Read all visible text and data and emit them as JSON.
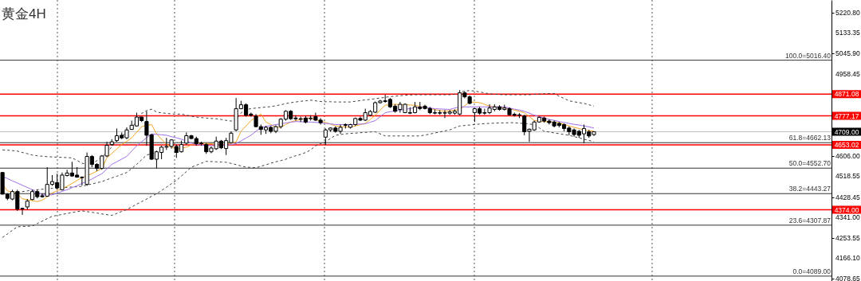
{
  "chart_data": {
    "type": "candlestick",
    "title": "黄金4H",
    "color": "#000000",
    "tick_labels": "y",
    "categories": [
      null,
      null,
      null,
      null,
      null,
      null,
      null,
      null,
      null,
      null,
      null,
      null,
      null,
      null,
      null,
      null,
      null,
      null,
      null,
      null,
      null,
      null,
      null,
      null,
      null,
      null,
      null,
      null,
      null,
      null,
      null,
      null,
      null,
      null,
      null,
      null,
      null,
      null,
      null,
      null,
      null,
      null,
      null,
      null,
      null,
      null,
      null,
      null,
      null,
      null,
      null,
      null,
      null,
      null,
      null,
      null,
      null,
      null,
      null,
      null,
      null,
      null,
      null,
      null,
      null,
      null,
      null,
      null,
      null,
      null,
      null,
      null,
      null,
      null,
      null,
      null,
      null,
      null,
      null,
      null,
      null,
      null,
      null,
      null,
      null,
      null,
      null,
      null,
      null,
      null,
      null,
      null,
      null,
      null,
      null,
      null,
      null,
      null,
      null,
      null,
      null,
      null,
      null,
      null,
      null,
      null,
      null,
      null,
      null,
      null,
      null,
      null,
      null,
      null,
      null,
      null,
      null,
      null,
      null,
      null
    ],
    "ohlc": [
      [
        4534,
        4536,
        4440,
        4441
      ],
      [
        4441,
        4445,
        4415,
        4423
      ],
      [
        4420,
        4460,
        4415,
        4452
      ],
      [
        4452,
        4460,
        4369,
        4377
      ],
      [
        4380,
        4383,
        4352,
        4378
      ],
      [
        4386,
        4420,
        4375,
        4411
      ],
      [
        4418,
        4460,
        4415,
        4452
      ],
      [
        4452,
        4460,
        4423,
        4430
      ],
      [
        4434,
        4443,
        4426,
        4430
      ],
      [
        4432,
        4557,
        4430,
        4483
      ],
      [
        4483,
        4523,
        4477,
        4495
      ],
      [
        4491,
        4529,
        4460,
        4468
      ],
      [
        4460,
        4534,
        4457,
        4523
      ],
      [
        4521,
        4546,
        4517,
        4532
      ],
      [
        4532,
        4580,
        4516,
        4519
      ],
      [
        4523,
        4557,
        4512,
        4514
      ],
      [
        4514,
        4517,
        4478,
        4512
      ],
      [
        4483,
        4620,
        4477,
        4603
      ],
      [
        4603,
        4609,
        4557,
        4569
      ],
      [
        4569,
        4574,
        4540,
        4552
      ],
      [
        4552,
        4609,
        4546,
        4605
      ],
      [
        4605,
        4666,
        4600,
        4651
      ],
      [
        4654,
        4677,
        4649,
        4666
      ],
      [
        4671,
        4723,
        4666,
        4692
      ],
      [
        4694,
        4706,
        4677,
        4683
      ],
      [
        4683,
        4728,
        4677,
        4717
      ],
      [
        4719,
        4757,
        4717,
        4737
      ],
      [
        4734,
        4791,
        4731,
        4772
      ],
      [
        4772,
        4774,
        4751,
        4757
      ],
      [
        4753,
        4797,
        4649,
        4694
      ],
      [
        4696,
        4700,
        4589,
        4591
      ],
      [
        4591,
        4628,
        4552,
        4623
      ],
      [
        4620,
        4649,
        4591,
        4643
      ],
      [
        4643,
        4683,
        4631,
        4646
      ],
      [
        4646,
        4677,
        4637,
        4674
      ],
      [
        4646,
        4654,
        4597,
        4620
      ],
      [
        4623,
        4671,
        4620,
        4654
      ],
      [
        4660,
        4706,
        4654,
        4692
      ],
      [
        4692,
        4696,
        4677,
        4680
      ],
      [
        4680,
        4688,
        4649,
        4658
      ],
      [
        4660,
        4666,
        4649,
        4658
      ],
      [
        4654,
        4660,
        4614,
        4623
      ],
      [
        4623,
        4646,
        4617,
        4639
      ],
      [
        4636,
        4688,
        4631,
        4669
      ],
      [
        4669,
        4674,
        4635,
        4640
      ],
      [
        4637,
        4683,
        4609,
        4671
      ],
      [
        4662,
        4711,
        4658,
        4703
      ],
      [
        4717,
        4854,
        4711,
        4808
      ],
      [
        4808,
        4842,
        4806,
        4825
      ],
      [
        4825,
        4831,
        4774,
        4780
      ],
      [
        4785,
        4791,
        4774,
        4780
      ],
      [
        4776,
        4785,
        4728,
        4731
      ],
      [
        4731,
        4740,
        4696,
        4719
      ],
      [
        4717,
        4734,
        4700,
        4728
      ],
      [
        4728,
        4734,
        4703,
        4711
      ],
      [
        4711,
        4737,
        4703,
        4731
      ],
      [
        4731,
        4768,
        4723,
        4763
      ],
      [
        4763,
        4802,
        4757,
        4797
      ],
      [
        4797,
        4802,
        4760,
        4765
      ],
      [
        4768,
        4780,
        4757,
        4765
      ],
      [
        4765,
        4774,
        4751,
        4763
      ],
      [
        4768,
        4777,
        4745,
        4751
      ],
      [
        4765,
        4780,
        4757,
        4768
      ],
      [
        4774,
        4791,
        4755,
        4759
      ],
      [
        4759,
        4768,
        4740,
        4748
      ],
      [
        4686,
        4723,
        4652,
        4717
      ],
      [
        4717,
        4728,
        4709,
        4725
      ],
      [
        4725,
        4732,
        4705,
        4711
      ],
      [
        4711,
        4740,
        4700,
        4728
      ],
      [
        4740,
        4745,
        4723,
        4737
      ],
      [
        4728,
        4743,
        4723,
        4740
      ],
      [
        4740,
        4770,
        4734,
        4766
      ],
      [
        4766,
        4774,
        4755,
        4759
      ],
      [
        4759,
        4808,
        4755,
        4791
      ],
      [
        4780,
        4802,
        4777,
        4796
      ],
      [
        4793,
        4839,
        4789,
        4834
      ],
      [
        4834,
        4846,
        4830,
        4841
      ],
      [
        4842,
        4868,
        4834,
        4839
      ],
      [
        4848,
        4854,
        4811,
        4816
      ],
      [
        4819,
        4827,
        4791,
        4797
      ],
      [
        4805,
        4837,
        4791,
        4827
      ],
      [
        4791,
        4831,
        4789,
        4827
      ],
      [
        4791,
        4814,
        4785,
        4789
      ],
      [
        4791,
        4837,
        4788,
        4816
      ],
      [
        4814,
        4837,
        4802,
        4809
      ],
      [
        4819,
        4825,
        4805,
        4809
      ],
      [
        4809,
        4816,
        4785,
        4791
      ],
      [
        4791,
        4805,
        4784,
        4789
      ],
      [
        4791,
        4802,
        4782,
        4789
      ],
      [
        4789,
        4802,
        4768,
        4791
      ],
      [
        4789,
        4802,
        4782,
        4794
      ],
      [
        4789,
        4805,
        4782,
        4797
      ],
      [
        4785,
        4888,
        4780,
        4876
      ],
      [
        4876,
        4882,
        4853,
        4859
      ],
      [
        4859,
        4865,
        4827,
        4831
      ],
      [
        4791,
        4811,
        4751,
        4808
      ],
      [
        4808,
        4816,
        4782,
        4789
      ],
      [
        4791,
        4808,
        4782,
        4789
      ],
      [
        4791,
        4827,
        4785,
        4811
      ],
      [
        4805,
        4827,
        4797,
        4816
      ],
      [
        4816,
        4823,
        4800,
        4805
      ],
      [
        4805,
        4825,
        4800,
        4811
      ],
      [
        4808,
        4814,
        4780,
        4782
      ],
      [
        4784,
        4791,
        4774,
        4780
      ],
      [
        4782,
        4789,
        4768,
        4780
      ],
      [
        4777,
        4782,
        4694,
        4709
      ],
      [
        4711,
        4723,
        4666,
        4720
      ],
      [
        4717,
        4757,
        4713,
        4751
      ],
      [
        4751,
        4774,
        4748,
        4771
      ],
      [
        4768,
        4774,
        4748,
        4755
      ],
      [
        4755,
        4762,
        4740,
        4748
      ],
      [
        4751,
        4757,
        4728,
        4734
      ],
      [
        4745,
        4751,
        4728,
        4736
      ],
      [
        4740,
        4745,
        4711,
        4723
      ],
      [
        4725,
        4732,
        4694,
        4709
      ],
      [
        4717,
        4723,
        4688,
        4697
      ],
      [
        4711,
        4717,
        4683,
        4694
      ],
      [
        4700,
        4740,
        4660,
        4723
      ],
      [
        4709,
        4717,
        4683,
        4691
      ],
      [
        4697,
        4711,
        4691,
        4709
      ]
    ],
    "series": [
      {
        "type": "line",
        "color": "#404040",
        "line_style": "dashed",
        "values": [
          4631,
          4630,
          4628,
          4626,
          4620,
          4615,
          4609,
          4606,
          4604,
          4602,
          4601,
          4600,
          4599,
          4598,
          4597,
          4586,
          4574,
          4569,
          4572,
          4585,
          4600,
          4620,
          4645,
          4671,
          4690,
          4706,
          4730,
          4751,
          4788,
          4800,
          4806,
          4794,
          4790,
          4788,
          4786,
          4785,
          4785,
          4780,
          4776,
          4772,
          4770,
          4768,
          4766,
          4765,
          4762,
          4758,
          4755,
          4760,
          4790,
          4805,
          4808,
          4811,
          4813,
          4815,
          4817,
          4821,
          4825,
          4830,
          4834,
          4837,
          4840,
          4842,
          4845,
          4842,
          4839,
          4838,
          4838,
          4837,
          4837,
          4837,
          4837,
          4840,
          4843,
          4846,
          4848,
          4851,
          4854,
          4857,
          4860,
          4862,
          4864,
          4866,
          4867,
          4868,
          4868,
          4868,
          4868,
          4868,
          4868,
          4868,
          4868,
          4870,
          4878,
          4884,
          4886,
          4884,
          4880,
          4876,
          4872,
          4870,
          4869,
          4868,
          4868,
          4868,
          4868,
          4868,
          4868,
          4870,
          4871,
          4872,
          4873,
          4873,
          4862,
          4852,
          4842,
          4838,
          4834,
          4831,
          4825,
          4819
        ]
      },
      {
        "type": "line",
        "color": "#404040",
        "line_style": "dashed",
        "values": [
          4255,
          4270,
          4286,
          4301,
          4302,
          4303,
          4304,
          4315,
          4325,
          4336,
          4346,
          4350,
          4354,
          4358,
          4362,
          4366,
          4369,
          4366,
          4363,
          4360,
          4356,
          4353,
          4350,
          4358,
          4367,
          4375,
          4386,
          4398,
          4409,
          4420,
          4432,
          4443,
          4457,
          4471,
          4486,
          4500,
          4519,
          4538,
          4557,
          4565,
          4574,
          4582,
          4581,
          4580,
          4579,
          4578,
          4573,
          4568,
          4562,
          4557,
          4556,
          4554,
          4561,
          4567,
          4574,
          4580,
          4585,
          4591,
          4599,
          4606,
          4612,
          4620,
          4631,
          4649,
          4658,
          4666,
          4680,
          4694,
          4697,
          4700,
          4702,
          4703,
          4705,
          4706,
          4708,
          4709,
          4700,
          4691,
          4691,
          4691,
          4691,
          4691,
          4691,
          4691,
          4691,
          4695,
          4699,
          4704,
          4708,
          4713,
          4717,
          4726,
          4734,
          4736,
          4738,
          4740,
          4742,
          4744,
          4745,
          4746,
          4747,
          4747,
          4748,
          4748,
          4746,
          4744,
          4742,
          4740,
          4726,
          4711,
          4708,
          4704,
          4701,
          4697,
          4694,
          4688,
          4683,
          4677,
          4672,
          4666
        ]
      },
      {
        "type": "line",
        "color": "#404040",
        "line_style": "dashed",
        "values": [
          null,
          null,
          null,
          4449,
          4452,
          4455,
          4458,
          4460,
          4462,
          4464,
          4466,
          4467,
          4469,
          4470,
          4472,
          4473,
          4475,
          4480,
          4485,
          4490,
          4495,
          4503,
          4511,
          4518,
          4526,
          4534,
          4551,
          4569,
          4589,
          4609,
          4615,
          4620,
          null,
          null,
          null,
          null,
          null,
          null,
          null,
          null,
          null,
          null,
          null,
          null,
          null,
          null,
          null,
          null,
          null,
          null,
          null,
          null,
          null,
          null,
          null,
          null,
          null,
          null,
          null,
          null,
          null,
          null,
          null,
          null,
          null,
          null,
          null,
          null,
          null,
          null,
          null,
          null,
          null,
          null,
          null,
          null,
          null,
          null,
          null,
          null,
          null,
          null,
          null,
          null,
          null,
          null,
          null,
          null,
          null,
          null,
          null,
          null,
          null,
          null,
          null,
          null,
          null,
          null,
          null,
          null,
          null,
          null,
          null,
          null,
          null,
          null,
          null,
          null,
          null,
          null,
          null,
          null,
          null,
          null,
          null,
          null,
          null,
          null,
          null,
          null
        ]
      },
      {
        "type": "line",
        "color": "#f5a623",
        "line_style": "solid",
        "values": [
          4483,
          4455,
          4449,
          4443,
          4421,
          4417,
          4413,
          4409,
          4415,
          4430,
          4446,
          4456,
          4465,
          4475,
          4487,
          4500,
          4512,
          4520,
          4529,
          4540,
          4552,
          4597,
          4616,
          4635,
          4654,
          4668,
          4683,
          4707,
          4731,
          4736,
          4740,
          4700,
          4677,
          4654,
          4644,
          4635,
          4639,
          4643,
          4652,
          4660,
          4659,
          4659,
          4658,
          4653,
          4649,
          4655,
          4660,
          4666,
          4711,
          4734,
          4757,
          4771,
          4785,
          4751,
          4740,
          4728,
          4728,
          4740,
          4751,
          4757,
          4762,
          4767,
          4767,
          4760,
          4757,
          4749,
          4742,
          4734,
          4732,
          4730,
          4728,
          4734,
          4740,
          4745,
          4762,
          4780,
          4802,
          4823,
          4825,
          4827,
          4826,
          4825,
          4824,
          4823,
          4818,
          4813,
          4808,
          4804,
          4800,
          4797,
          4800,
          4802,
          4805,
          4821,
          4837,
          4836,
          4834,
          4827,
          4819,
          4816,
          4814,
          4811,
          4808,
          4802,
          4797,
          4791,
          4774,
          4757,
          4755,
          4753,
          4751,
          4750,
          4748,
          4741,
          4734,
          4728,
          4723,
          4717,
          4714,
          4711
        ]
      },
      {
        "type": "line",
        "color": "#a070e8",
        "line_style": "solid",
        "values": [
          4517,
          4508,
          4498,
          4489,
          4479,
          4470,
          4460,
          4449,
          4438,
          4438,
          4438,
          4445,
          4453,
          4460,
          4469,
          4477,
          4487,
          4496,
          4506,
          4518,
          4529,
          4549,
          4569,
          4580,
          4592,
          4603,
          4626,
          4649,
          4666,
          4683,
          4700,
          4698,
          4696,
          4694,
          4688,
          4683,
          4677,
          4669,
          4660,
          4656,
          4651,
          4650,
          4650,
          4649,
          4651,
          4652,
          4654,
          4658,
          4670,
          4682,
          4694,
          4711,
          4728,
          4732,
          4736,
          4740,
          4743,
          4747,
          4750,
          4753,
          4752,
          4751,
          4751,
          4749,
          4748,
          4745,
          4743,
          4740,
          4740,
          4740,
          4740,
          4741,
          4742,
          4743,
          4750,
          4757,
          4774,
          4791,
          4795,
          4798,
          4802,
          4805,
          4809,
          4812,
          4816,
          4813,
          4811,
          4808,
          4807,
          4806,
          4805,
          4811,
          4816,
          4816,
          4816,
          4816,
          4816,
          4816,
          4816,
          4816,
          4816,
          4816,
          4811,
          4806,
          4802,
          4797,
          4789,
          4780,
          4774,
          4768,
          4762,
          4758,
          4753,
          4749,
          4745,
          4741,
          4738,
          4734,
          4730,
          4725
        ]
      }
    ],
    "ylim": [
      4068,
      5275
    ],
    "yticks": [
      {
        "value": 5220.8,
        "label": "5220.80"
      },
      {
        "value": 5133.35,
        "label": "5133.35"
      },
      {
        "value": 5045.9,
        "label": "5045.90"
      },
      {
        "value": 4958.45,
        "label": "4958.45"
      },
      {
        "value": 4606,
        "label": "4606.00"
      },
      {
        "value": 4518.55,
        "label": "4518.55"
      },
      {
        "value": 4428.45,
        "label": "4428.45"
      },
      {
        "value": 4341,
        "label": "4341.00"
      },
      {
        "value": 4253.55,
        "label": "4253.55"
      },
      {
        "value": 4166.1,
        "label": "4166.10"
      },
      {
        "value": 4078.65,
        "label": "4078.65"
      }
    ],
    "ref_lines": [
      {
        "axis": "y",
        "value": 5016.4,
        "label": "100.0=5016.40",
        "color": "#333333"
      },
      {
        "axis": "y",
        "value": 4871.08,
        "label": "4871.08",
        "color": "#ff0000"
      },
      {
        "axis": "y",
        "value": 4777.17,
        "label": "4777.17",
        "color": "#ff0000"
      },
      {
        "axis": "y",
        "value": 4709,
        "label": "4709.00",
        "color": "#c0c0c8"
      },
      {
        "axis": "y",
        "value": 4662.13,
        "label": "61.8=4662.13",
        "color": "#333333"
      },
      {
        "axis": "y",
        "value": 4653.02,
        "label": "4653.02",
        "color": "#ff0000"
      },
      {
        "axis": "y",
        "value": 4552.7,
        "label": "50.0=4552.70",
        "color": "#333333"
      },
      {
        "axis": "y",
        "value": 4443.27,
        "label": "38.2=4443.27",
        "color": "#333333"
      },
      {
        "axis": "y",
        "value": 4374,
        "label": "4374.00",
        "color": "#ff0000"
      },
      {
        "axis": "y",
        "value": 4307.87,
        "label": "23.6=4307.87",
        "color": "#333333"
      },
      {
        "axis": "y",
        "value": 4089,
        "label": "0.0=4089.00",
        "color": "#333333"
      }
    ]
  }
}
